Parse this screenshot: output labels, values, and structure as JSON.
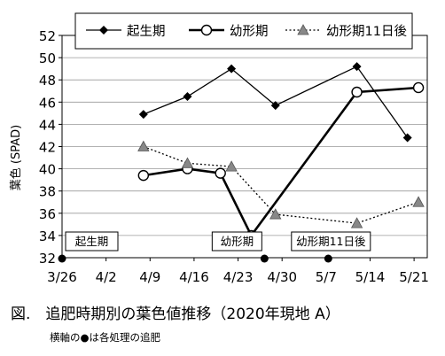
{
  "chart_data": {
    "type": "line",
    "ylabel": "葉色 (SPAD)",
    "ylim": [
      32,
      52
    ],
    "yticks": [
      32,
      34,
      36,
      38,
      40,
      42,
      44,
      46,
      48,
      50,
      52
    ],
    "x_categories": [
      "3/26",
      "4/2",
      "4/9",
      "4/16",
      "4/23",
      "4/30",
      "5/7",
      "5/14",
      "5/21"
    ],
    "xlim": [
      0,
      8.3
    ],
    "legend_position": "top",
    "series": [
      {
        "name": "起生期",
        "style": "solid-thin",
        "marker": "filled-diamond",
        "color": "#000000",
        "points": [
          [
            1.85,
            44.9
          ],
          [
            2.85,
            46.5
          ],
          [
            3.85,
            49.0
          ],
          [
            4.85,
            45.7
          ],
          [
            6.7,
            49.2
          ],
          [
            7.85,
            42.8
          ]
        ]
      },
      {
        "name": "幼形期",
        "style": "solid-thick",
        "marker": "open-circle",
        "color": "#000000",
        "points": [
          [
            1.85,
            39.4
          ],
          [
            2.85,
            40.0
          ],
          [
            3.6,
            39.6
          ],
          [
            4.3,
            34.0
          ],
          [
            6.7,
            46.9
          ],
          [
            8.1,
            47.3
          ]
        ]
      },
      {
        "name": "幼形期11日後",
        "style": "dotted",
        "marker": "gray-triangle",
        "color": "#888888",
        "points": [
          [
            1.85,
            42.0
          ],
          [
            2.85,
            40.5
          ],
          [
            3.85,
            40.2
          ],
          [
            4.85,
            35.9
          ],
          [
            6.7,
            35.1
          ],
          [
            8.1,
            37.0
          ]
        ]
      }
    ],
    "annotations": [
      {
        "label": "起生期",
        "x": 0,
        "marker": "dot"
      },
      {
        "label": "幼形期",
        "x": 4.6,
        "marker": "dot"
      },
      {
        "label": "幼形期11日後",
        "x": 6.05,
        "marker": "dot"
      }
    ]
  },
  "caption": "図.　追肥時期別の葉色値推移（2020年現地 A）",
  "note": "横軸の●は各処理の追肥"
}
